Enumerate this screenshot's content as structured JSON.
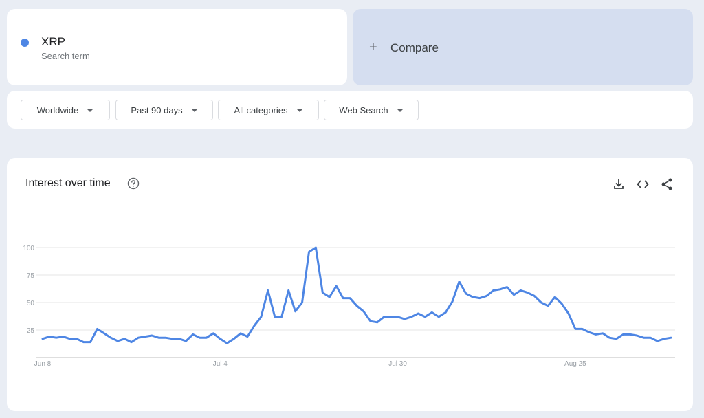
{
  "term": {
    "name": "XRP",
    "subtitle": "Search term",
    "color": "#4e86e4"
  },
  "compare": {
    "plus": "+",
    "label": "Compare"
  },
  "filters": [
    {
      "label": "Worldwide"
    },
    {
      "label": "Past 90 days"
    },
    {
      "label": "All categories"
    },
    {
      "label": "Web Search"
    }
  ],
  "chart": {
    "title": "Interest over time",
    "icons": [
      "help-icon",
      "download-icon",
      "embed-icon",
      "share-icon"
    ]
  },
  "chart_data": {
    "type": "line",
    "title": "Interest over time",
    "ylim": [
      0,
      100
    ],
    "yticks": [
      "25",
      "50",
      "75",
      "100"
    ],
    "xtick_labels": [
      "Jun 8",
      "Jul 4",
      "Jul 30",
      "Aug 25"
    ],
    "xtick_index": [
      0,
      26,
      52,
      78
    ],
    "grid": true,
    "series": [
      {
        "name": "XRP",
        "color": "#4e86e4",
        "values": [
          17,
          19,
          18,
          19,
          17,
          17,
          14,
          14,
          26,
          22,
          18,
          15,
          17,
          14,
          18,
          19,
          20,
          18,
          18,
          17,
          17,
          15,
          21,
          18,
          18,
          22,
          17,
          13,
          17,
          22,
          19,
          29,
          37,
          61,
          37,
          37,
          61,
          42,
          50,
          96,
          100,
          59,
          55,
          65,
          54,
          54,
          47,
          42,
          33,
          32,
          37,
          37,
          37,
          35,
          37,
          40,
          37,
          41,
          37,
          41,
          51,
          69,
          58,
          55,
          54,
          56,
          61,
          62,
          64,
          57,
          61,
          59,
          56,
          50,
          47,
          55,
          49,
          40,
          26,
          26,
          23,
          21,
          22,
          18,
          17,
          21,
          21,
          20,
          18,
          18,
          15,
          17,
          18
        ]
      }
    ]
  }
}
